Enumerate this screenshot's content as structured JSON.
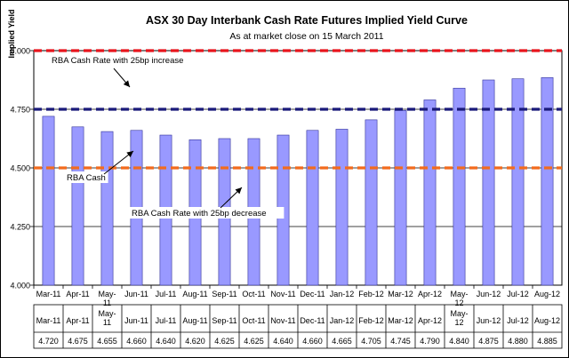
{
  "chart_data": {
    "type": "bar",
    "title": "ASX 30 Day Interbank Cash Rate Futures Implied Yield Curve",
    "subtitle": "As at market close on 15 March 2011",
    "ylabel": "Implied  Yield",
    "xlabel": "",
    "ylim": [
      4.0,
      5.0
    ],
    "yticks": [
      "4.000",
      "4.250",
      "4.500",
      "4.750",
      "5.000"
    ],
    "grid": true,
    "categories": [
      "Mar-11",
      "Apr-11",
      "May-11",
      "Jun-11",
      "Jul-11",
      "Aug-11",
      "Sep-11",
      "Oct-11",
      "Nov-11",
      "Dec-11",
      "Jan-12",
      "Feb-12",
      "Mar-12",
      "Apr-12",
      "May-12",
      "Jun-12",
      "Jul-12",
      "Aug-12"
    ],
    "values": [
      4.72,
      4.675,
      4.655,
      4.66,
      4.64,
      4.62,
      4.625,
      4.625,
      4.64,
      4.66,
      4.665,
      4.705,
      4.745,
      4.79,
      4.84,
      4.875,
      4.88,
      4.885
    ],
    "value_labels": [
      "4.720",
      "4.675",
      "4.655",
      "4.660",
      "4.640",
      "4.620",
      "4.625",
      "4.625",
      "4.640",
      "4.660",
      "4.665",
      "4.705",
      "4.745",
      "4.790",
      "4.840",
      "4.875",
      "4.880",
      "4.885"
    ],
    "reference_lines": [
      {
        "label": "RBA Cash Rate with 25bp increase",
        "value": 5.0,
        "color": "#e8141c"
      },
      {
        "label": "RBA Cash",
        "value": 4.75,
        "color": "#1a1a7a"
      },
      {
        "label": "RBA Cash Rate with 25bp decrease",
        "value": 4.5,
        "color": "#f26b1d"
      }
    ],
    "bar_color": "#9999ff",
    "bar_border": "#333399"
  }
}
